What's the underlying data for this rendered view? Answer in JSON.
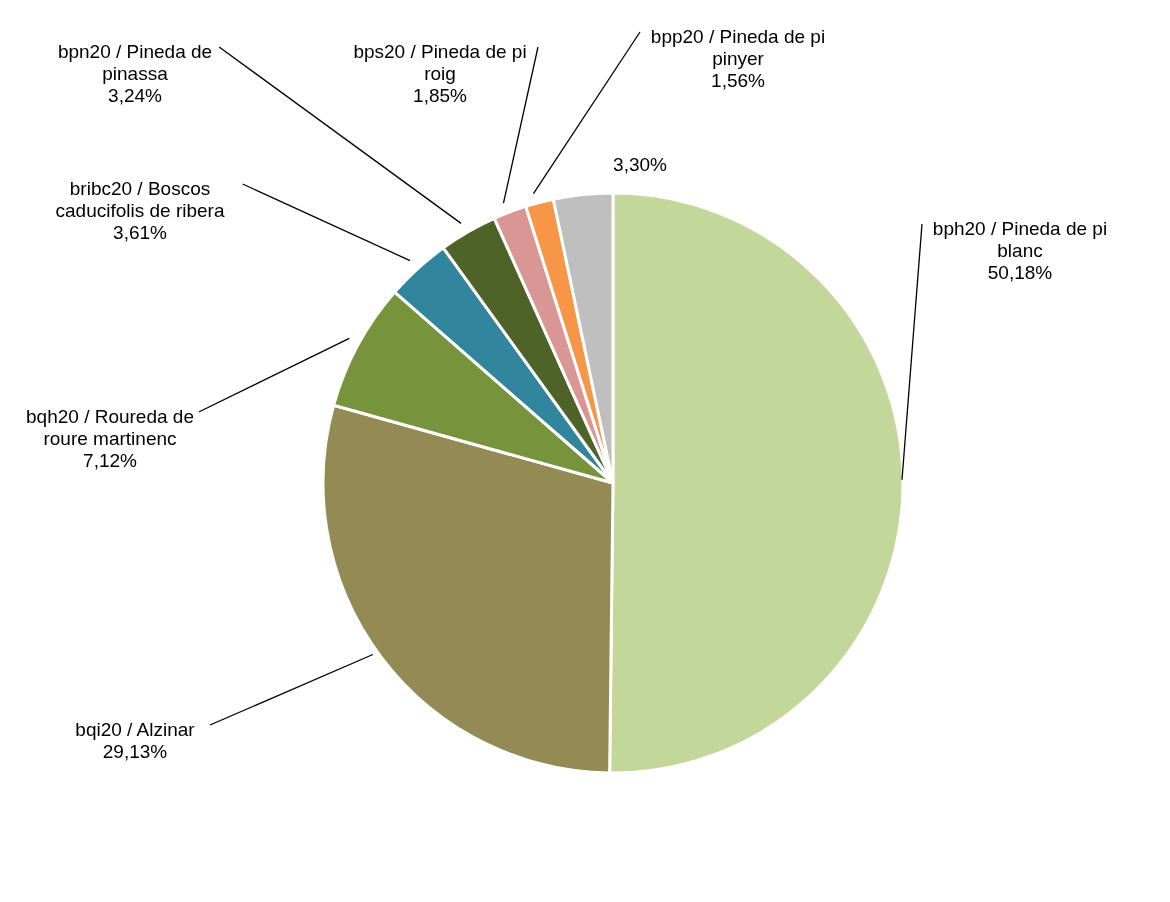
{
  "chart_data": {
    "type": "pie",
    "categories": [
      "bph20 / Pineda de pi blanc",
      "bqi20 / Alzinar",
      "bqh20 / Roureda de roure martinenc",
      "bribc20 / Boscos caducifolis de ribera",
      "bpn20 / Pineda de pinassa",
      "bps20 / Pineda de pi roig",
      "bpp20 / Pineda de pi pinyer",
      null
    ],
    "values": [
      50.18,
      29.13,
      7.12,
      3.61,
      3.24,
      1.85,
      1.56,
      3.3
    ],
    "value_labels": [
      "50,18%",
      "29,13%",
      "7,12%",
      "3,61%",
      "3,24%",
      "1,85%",
      "1,56%",
      "3,30%"
    ],
    "colors": [
      "#c4d79b",
      "#948a54",
      "#77933c",
      "#31859c",
      "#4f6228",
      "#d99694",
      "#f79646",
      "#bfbfbf"
    ],
    "legend": false
  }
}
